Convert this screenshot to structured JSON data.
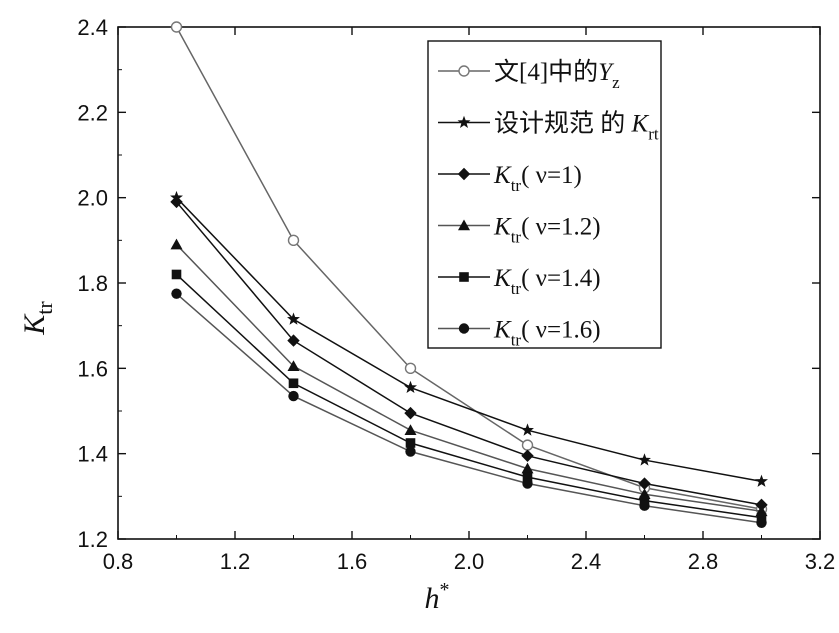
{
  "chart_data": {
    "type": "line",
    "xlabel": {
      "main": "h",
      "sup": "*"
    },
    "ylabel": {
      "main": "K",
      "sub": "tr"
    },
    "xlim": [
      0.8,
      3.2
    ],
    "ylim": [
      1.2,
      2.4
    ],
    "xticks": [
      "0.8",
      "1.2",
      "1.6",
      "2.0",
      "2.4",
      "2.8",
      "3.2"
    ],
    "yticks": [
      "1.2",
      "1.4",
      "1.6",
      "1.8",
      "2.0",
      "2.2",
      "2.4"
    ],
    "grid": false,
    "legend_position": "top-right",
    "x": [
      1.0,
      1.4,
      1.8,
      2.2,
      2.6,
      3.0
    ],
    "series": [
      {
        "marker": "open-circle",
        "color": "#666666",
        "legend": {
          "pre": "文[4]中的",
          "italic": "Y",
          "sub": "z",
          "post": ""
        },
        "values": [
          2.4,
          1.9,
          1.6,
          1.42,
          1.32,
          1.27
        ]
      },
      {
        "marker": "star",
        "color": "#111111",
        "legend": {
          "pre": "设计规范 的 ",
          "italic": "K",
          "sub": "rt",
          "post": ""
        },
        "values": [
          2.0,
          1.715,
          1.555,
          1.455,
          1.385,
          1.335
        ]
      },
      {
        "marker": "diamond",
        "color": "#111111",
        "legend": {
          "pre": "",
          "italic": "K",
          "sub": "tr",
          "post": "( ν=1)"
        },
        "values": [
          1.99,
          1.665,
          1.495,
          1.395,
          1.33,
          1.28
        ]
      },
      {
        "marker": "triangle",
        "color": "#555555",
        "legend": {
          "pre": "",
          "italic": "K",
          "sub": "tr",
          "post": "( ν=1.2)"
        },
        "values": [
          1.89,
          1.605,
          1.455,
          1.365,
          1.305,
          1.265
        ]
      },
      {
        "marker": "square",
        "color": "#111111",
        "legend": {
          "pre": "",
          "italic": "K",
          "sub": "tr",
          "post": "( ν=1.4)"
        },
        "values": [
          1.82,
          1.565,
          1.425,
          1.345,
          1.29,
          1.25
        ]
      },
      {
        "marker": "filled-circle",
        "color": "#555555",
        "legend": {
          "pre": "",
          "italic": "K",
          "sub": "tr",
          "post": "( ν=1.6)"
        },
        "values": [
          1.775,
          1.535,
          1.405,
          1.33,
          1.278,
          1.238
        ]
      }
    ]
  }
}
